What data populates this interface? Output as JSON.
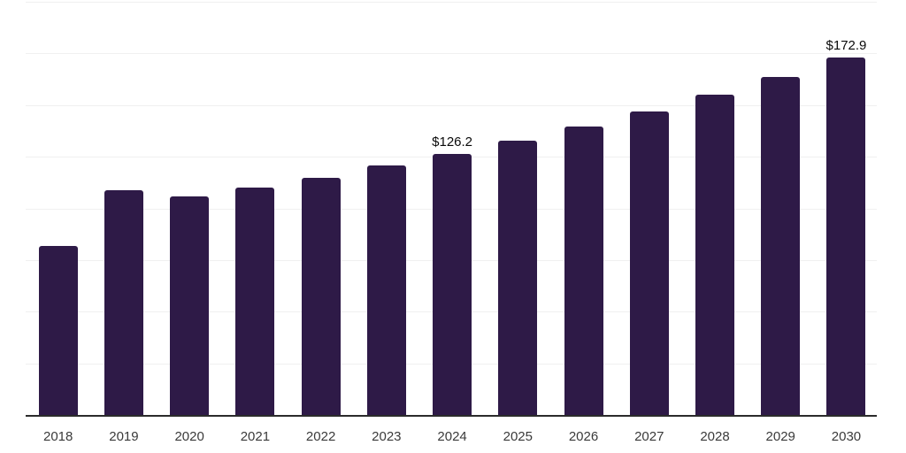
{
  "chart_data": {
    "type": "bar",
    "title": "",
    "xlabel": "",
    "ylabel": "",
    "categories": [
      "2018",
      "2019",
      "2020",
      "2021",
      "2022",
      "2023",
      "2024",
      "2025",
      "2026",
      "2027",
      "2028",
      "2029",
      "2030"
    ],
    "values": [
      81.9,
      108.6,
      105.6,
      110.1,
      114.9,
      120.6,
      126.2,
      132.6,
      139.5,
      147.0,
      155.0,
      163.6,
      172.9
    ],
    "data_labels": [
      {
        "index": 6,
        "text": "$126.2"
      },
      {
        "index": 12,
        "text": "$172.9"
      }
    ],
    "ylim": [
      0,
      200
    ],
    "gridline_step": 25,
    "grid": true,
    "legend": false,
    "y_axis_tick_labels_visible": false
  },
  "style": {
    "background_color": "#FFFFFF",
    "bar_color": "#2E1A47",
    "axis_line_color": "#2B2B2B",
    "gridline_color": "#F0F0F0",
    "data_label_color": "#0A0A0A",
    "tick_label_color": "#3A3A3A"
  }
}
